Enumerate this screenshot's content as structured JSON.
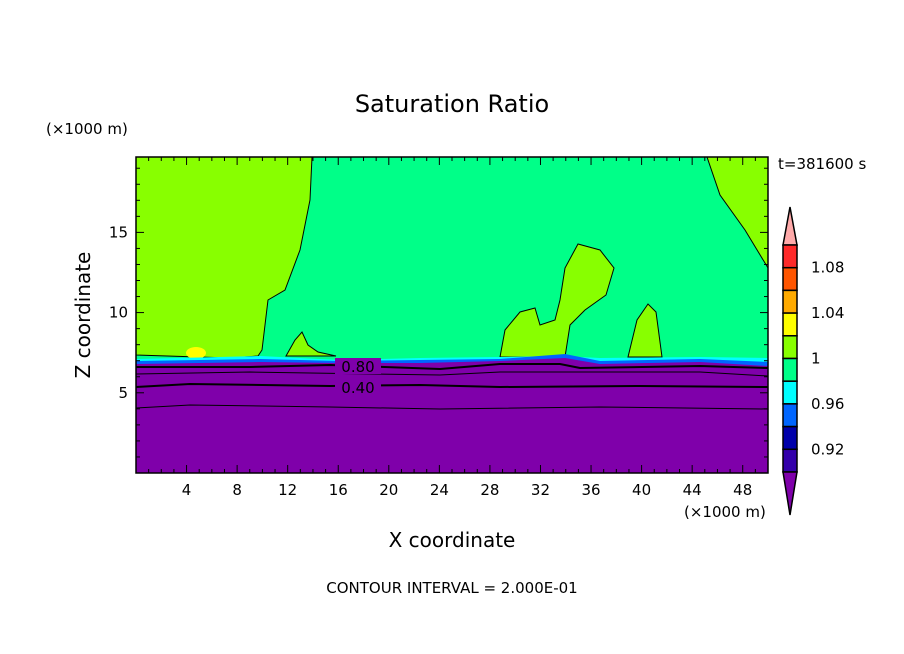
{
  "chart_data": {
    "type": "heatmap",
    "title": "Saturation Ratio",
    "xlabel": "X coordinate",
    "ylabel": "Z coordinate",
    "x_unit": "(×1000 m)",
    "y_unit": "(×1000 m)",
    "xlim": [
      0,
      50
    ],
    "ylim": [
      0,
      19.7
    ],
    "x_ticks": [
      "4",
      "8",
      "12",
      "16",
      "20",
      "24",
      "28",
      "32",
      "36",
      "40",
      "44",
      "48"
    ],
    "y_ticks": [
      "5",
      "10",
      "15"
    ],
    "time_label": "t=381600 s",
    "footer": "CONTOUR INTERVAL = 2.000E-01",
    "contour_labels": [
      "0.80",
      "0.40"
    ],
    "colorbar": {
      "labels": [
        "1.08",
        "1.04",
        "1",
        "0.96",
        "0.92"
      ],
      "colors": [
        "#ffaaaa",
        "#ff2a2a",
        "#ff5500",
        "#ffaa00",
        "#ffff00",
        "#88ff00",
        "#00ff88",
        "#00ffff",
        "#0066ff",
        "#0000aa",
        "#3300aa",
        "#7f00aa"
      ]
    }
  }
}
